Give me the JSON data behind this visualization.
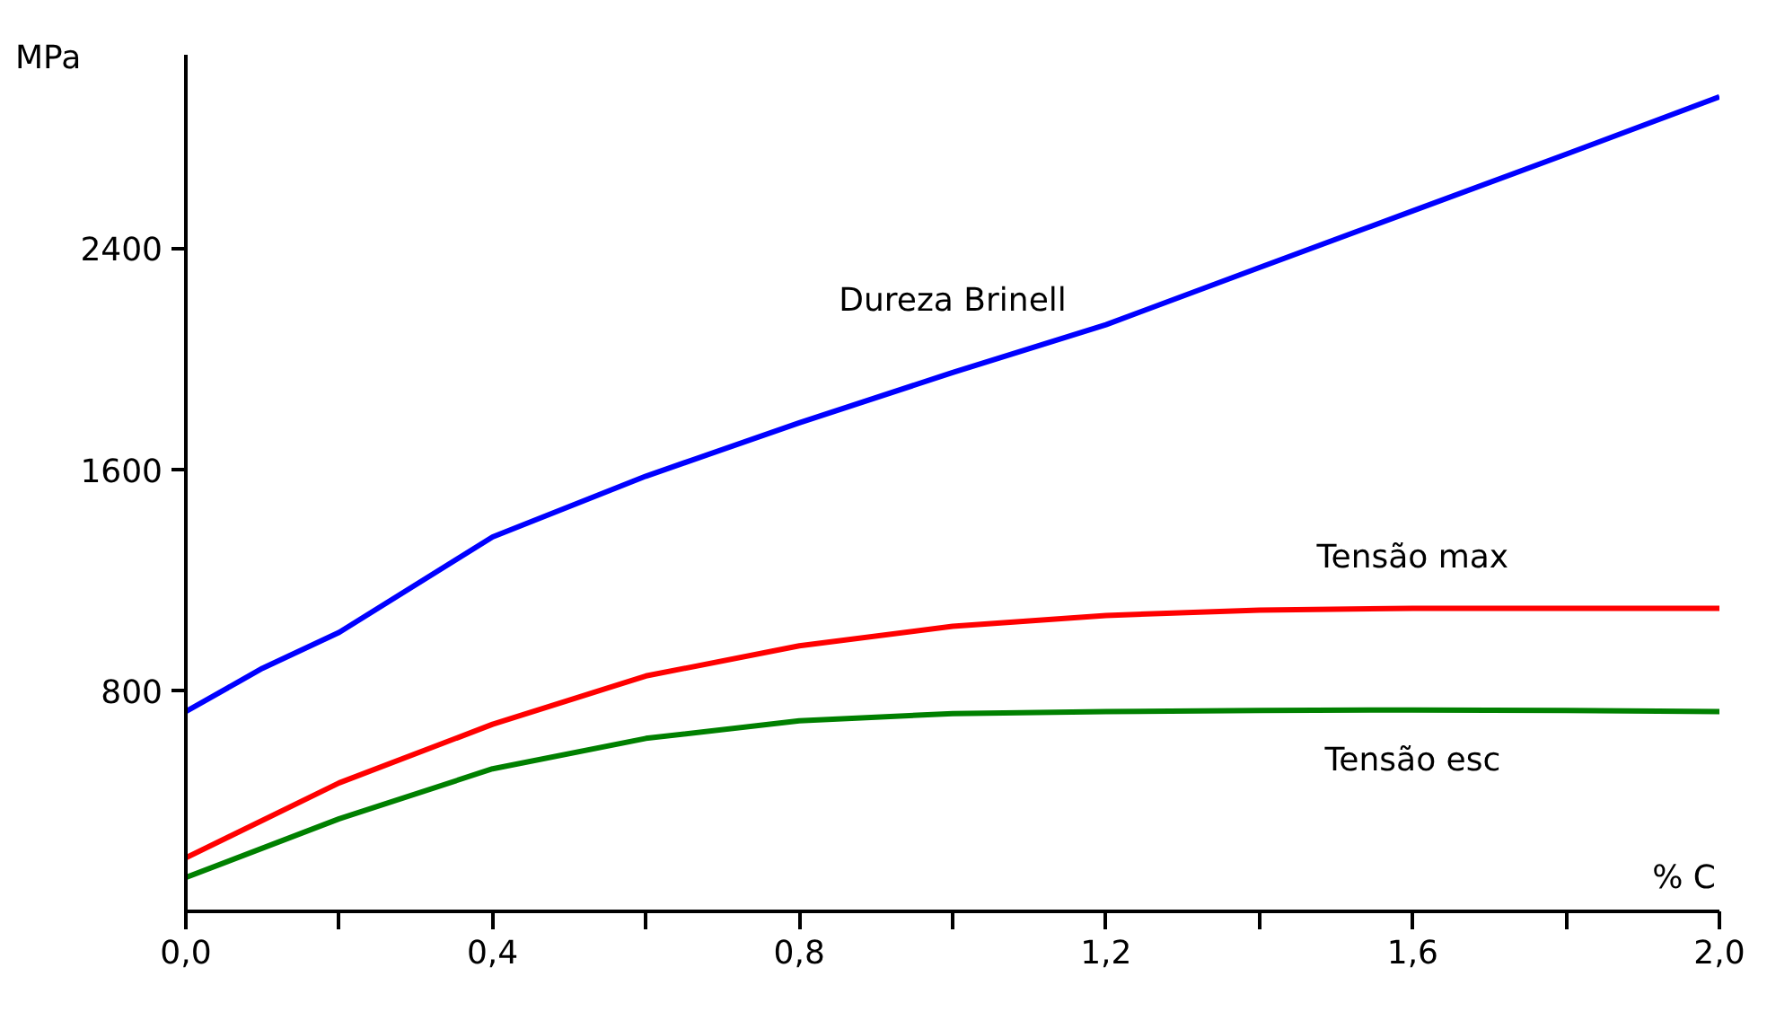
{
  "chart_data": {
    "type": "line",
    "xlabel": "% C",
    "ylabel": "MPa",
    "xlim": [
      0,
      2
    ],
    "ylim": [
      0,
      3100
    ],
    "xticks": [
      {
        "value": 0,
        "label": "0,0"
      },
      {
        "value": 0.2,
        "label": null
      },
      {
        "value": 0.4,
        "label": "0,4"
      },
      {
        "value": 0.6,
        "label": null
      },
      {
        "value": 0.8,
        "label": "0,8"
      },
      {
        "value": 1.0,
        "label": null
      },
      {
        "value": 1.2,
        "label": "1,2"
      },
      {
        "value": 1.4,
        "label": null
      },
      {
        "value": 1.6,
        "label": "1,6"
      },
      {
        "value": 1.8,
        "label": null
      },
      {
        "value": 2.0,
        "label": "2,0"
      }
    ],
    "yticks": [
      800,
      1600,
      2400
    ],
    "grid": false,
    "marker": "none",
    "line_style": "solid",
    "series": [
      {
        "name": "Dureza Brinell",
        "color": "#0000ff",
        "x": [
          0,
          0.1,
          0.2,
          0.4,
          0.6,
          0.8,
          1.0,
          1.2,
          1.4,
          1.6,
          1.8,
          2.0
        ],
        "values": [
          723,
          880,
          1010,
          1355,
          1575,
          1768,
          1950,
          2123,
          2330,
          2535,
          2740,
          2948
        ]
      },
      {
        "name": "Tensão max",
        "color": "#ff0000",
        "x": [
          0,
          0.2,
          0.4,
          0.6,
          0.8,
          1.0,
          1.2,
          1.4,
          1.6,
          1.8,
          2.0
        ],
        "values": [
          194,
          465,
          677,
          852,
          961,
          1032,
          1071,
          1090,
          1097,
          1097,
          1097
        ]
      },
      {
        "name": "Tensão esc",
        "color": "#008000",
        "x": [
          0,
          0.2,
          0.4,
          0.6,
          0.8,
          1.0,
          1.2,
          1.4,
          1.6,
          1.8,
          2.0
        ],
        "values": [
          123,
          335,
          516,
          626,
          690,
          716,
          723,
          727,
          729,
          727,
          723
        ]
      }
    ]
  }
}
